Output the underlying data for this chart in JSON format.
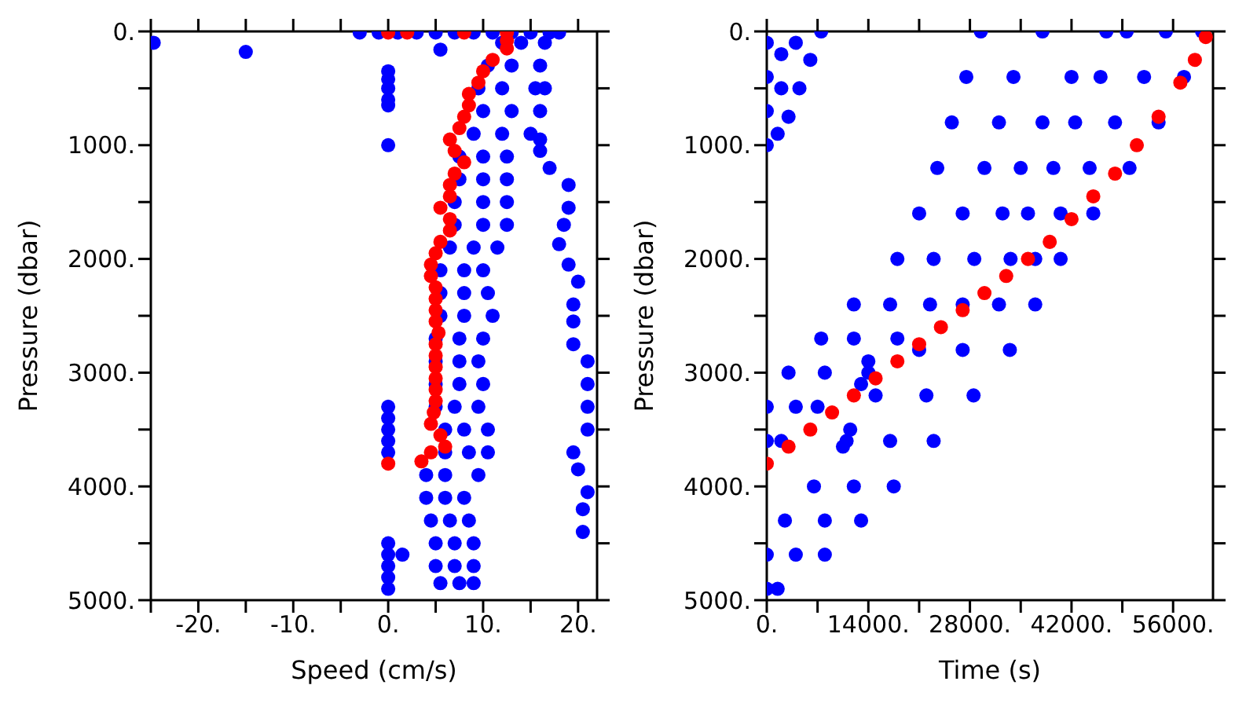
{
  "chart_data": [
    {
      "type": "scatter",
      "xlabel": "Speed (cm/s)",
      "ylabel": "Pressure (dbar)",
      "marker": "circle",
      "xlim": [
        -25,
        22
      ],
      "xticks": [
        {
          "value": -25,
          "label": null
        },
        {
          "value": -20,
          "label": "-20."
        },
        {
          "value": -15,
          "label": null
        },
        {
          "value": -10,
          "label": "-10."
        },
        {
          "value": -5,
          "label": null
        },
        {
          "value": 0,
          "label": "0."
        },
        {
          "value": 5,
          "label": null
        },
        {
          "value": 10,
          "label": "10."
        },
        {
          "value": 15,
          "label": null
        },
        {
          "value": 20,
          "label": "20."
        }
      ],
      "ylim": [
        5000,
        0
      ],
      "yticks": [
        {
          "value": 0,
          "label": "0."
        },
        {
          "value": 500,
          "label": null
        },
        {
          "value": 1000,
          "label": "1000."
        },
        {
          "value": 1500,
          "label": null
        },
        {
          "value": 2000,
          "label": "2000."
        },
        {
          "value": 2500,
          "label": null
        },
        {
          "value": 3000,
          "label": "3000."
        },
        {
          "value": 3500,
          "label": null
        },
        {
          "value": 4000,
          "label": "4000."
        },
        {
          "value": 4500,
          "label": null
        },
        {
          "value": 5000,
          "label": "5000."
        }
      ],
      "series": [
        {
          "color": "#0000ff",
          "x": [
            -3,
            -1,
            1,
            3,
            5,
            7,
            9,
            11,
            13,
            15,
            17,
            18,
            -24.7,
            -15,
            5.5,
            0,
            0,
            0,
            0,
            0,
            0,
            0,
            0,
            0,
            0,
            0,
            0,
            0,
            0,
            0,
            0,
            1.5,
            16,
            16,
            17,
            19,
            19,
            18.5,
            18,
            19,
            20,
            19.5,
            19.5,
            19.5,
            21,
            21,
            21,
            21,
            19.5,
            20,
            21,
            20.5,
            20.5,
            12,
            14,
            16.5,
            10.5,
            13,
            16,
            9.5,
            12,
            15.5,
            16.5,
            10,
            13,
            16,
            9,
            12,
            15,
            7.5,
            10,
            12.5,
            7.5,
            10,
            12.5,
            7,
            10,
            12.5,
            7,
            10,
            12.5,
            6.5,
            9,
            11.5,
            5.5,
            8,
            10,
            5.5,
            8,
            10.5,
            5.5,
            8,
            11,
            5,
            7.5,
            10,
            5,
            7.5,
            9.5,
            5,
            7.5,
            10,
            5,
            7,
            9.5,
            6,
            8,
            10.5,
            6,
            8.5,
            10.5,
            4,
            6,
            9.5,
            4,
            6,
            8,
            4.5,
            6.5,
            8.5,
            5,
            7,
            9,
            5,
            7,
            9,
            5.5,
            7.5,
            9
          ],
          "values": [
            10,
            10,
            10,
            10,
            10,
            10,
            10,
            10,
            10,
            10,
            10,
            10,
            100,
            180,
            160,
            350,
            420,
            500,
            600,
            650,
            1000,
            3300,
            3400,
            3500,
            3600,
            3700,
            4500,
            4600,
            4700,
            4800,
            4900,
            4600,
            950,
            1050,
            1200,
            1350,
            1550,
            1700,
            1870,
            2050,
            2200,
            2400,
            2550,
            2750,
            2900,
            3100,
            3300,
            3500,
            3700,
            3850,
            4050,
            4200,
            4400,
            100,
            100,
            100,
            300,
            300,
            300,
            500,
            500,
            500,
            500,
            700,
            700,
            700,
            900,
            900,
            900,
            1100,
            1100,
            1100,
            1300,
            1300,
            1300,
            1500,
            1500,
            1500,
            1700,
            1700,
            1700,
            1900,
            1900,
            1900,
            2100,
            2100,
            2100,
            2300,
            2300,
            2300,
            2500,
            2500,
            2500,
            2700,
            2700,
            2700,
            2900,
            2900,
            2900,
            3100,
            3100,
            3100,
            3300,
            3300,
            3300,
            3500,
            3500,
            3500,
            3700,
            3700,
            3700,
            3900,
            3900,
            3900,
            4100,
            4100,
            4100,
            4300,
            4300,
            4300,
            4500,
            4500,
            4500,
            4700,
            4700,
            4700,
            4850,
            4850,
            4850
          ]
        },
        {
          "color": "#ff0000",
          "x": [
            0,
            2,
            8,
            12.5,
            12.5,
            12.5,
            11,
            10,
            9.5,
            8.5,
            8.5,
            8,
            7.5,
            6.5,
            7,
            8,
            7,
            6.5,
            6.5,
            5.5,
            6.5,
            6.5,
            5.5,
            5,
            4.5,
            4.5,
            5,
            5,
            5,
            5,
            5.3,
            5,
            5,
            5,
            5,
            5,
            5,
            4.8,
            4.5,
            5.5,
            6,
            4.5,
            3.5,
            0
          ],
          "values": [
            10,
            10,
            10,
            10,
            80,
            150,
            250,
            350,
            450,
            550,
            650,
            750,
            850,
            950,
            1050,
            1150,
            1250,
            1350,
            1450,
            1550,
            1650,
            1750,
            1850,
            1950,
            2050,
            2150,
            2250,
            2350,
            2450,
            2550,
            2650,
            2750,
            2850,
            2950,
            3050,
            3150,
            3250,
            3350,
            3450,
            3550,
            3650,
            3700,
            3780,
            3800
          ]
        }
      ]
    },
    {
      "type": "scatter",
      "xlabel": "Time (s)",
      "ylabel": "Pressure (dbar)",
      "marker": "circle",
      "xlim": [
        0,
        61500
      ],
      "xticks": [
        {
          "value": 0,
          "label": "0."
        },
        {
          "value": 7000,
          "label": null
        },
        {
          "value": 14000,
          "label": "14000."
        },
        {
          "value": 21000,
          "label": null
        },
        {
          "value": 28000,
          "label": "28000."
        },
        {
          "value": 35000,
          "label": null
        },
        {
          "value": 42000,
          "label": "42000."
        },
        {
          "value": 49000,
          "label": null
        },
        {
          "value": 56000,
          "label": "56000."
        }
      ],
      "ylim": [
        5000,
        0
      ],
      "yticks": [
        {
          "value": 0,
          "label": "0."
        },
        {
          "value": 500,
          "label": null
        },
        {
          "value": 1000,
          "label": "1000."
        },
        {
          "value": 1500,
          "label": null
        },
        {
          "value": 2000,
          "label": "2000."
        },
        {
          "value": 2500,
          "label": null
        },
        {
          "value": 3000,
          "label": "3000."
        },
        {
          "value": 3500,
          "label": null
        },
        {
          "value": 4000,
          "label": "4000."
        },
        {
          "value": 4500,
          "label": null
        },
        {
          "value": 5000,
          "label": "5000."
        }
      ],
      "series": [
        {
          "color": "#0000ff",
          "x": [
            0,
            0,
            0,
            2000,
            2000,
            4000,
            7500,
            6000,
            4500,
            3000,
            1500,
            0,
            0,
            2000,
            0,
            4000,
            7000,
            3000,
            8000,
            14000,
            7500,
            12000,
            18000,
            12000,
            17000,
            22500,
            18000,
            23000,
            28600,
            21000,
            27000,
            32500,
            23500,
            30000,
            35000,
            25500,
            32000,
            38000,
            27500,
            34000,
            42000,
            29500,
            38000,
            46800,
            14000,
            13000,
            11500,
            10500,
            0,
            1500,
            0,
            4000,
            8000,
            2500,
            8000,
            13000,
            6500,
            12000,
            17500,
            11000,
            17000,
            23000,
            15000,
            22000,
            28500,
            21000,
            27000,
            33500,
            27000,
            32000,
            37000,
            33600,
            37000,
            40500,
            36000,
            40500,
            45000,
            39500,
            44500,
            50000,
            42500,
            48000,
            54000,
            46000,
            52000,
            57500,
            49600,
            55000,
            60000
          ],
          "values": [
            100,
            400,
            700,
            200,
            500,
            100,
            0,
            250,
            500,
            750,
            900,
            1000,
            3600,
            3600,
            3300,
            3300,
            3300,
            3000,
            3000,
            3000,
            2700,
            2700,
            2700,
            2400,
            2400,
            2400,
            2000,
            2000,
            2000,
            1600,
            1600,
            1600,
            1200,
            1200,
            1200,
            800,
            800,
            800,
            400,
            400,
            400,
            0,
            0,
            0,
            2900,
            3100,
            3500,
            3650,
            4900,
            4900,
            4600,
            4600,
            4600,
            4300,
            4300,
            4300,
            4000,
            4000,
            4000,
            3600,
            3600,
            3600,
            3200,
            3200,
            3200,
            2800,
            2800,
            2800,
            2400,
            2400,
            2400,
            2000,
            2000,
            2000,
            1600,
            1600,
            1600,
            1200,
            1200,
            1200,
            800,
            800,
            800,
            400,
            400,
            400,
            0,
            0,
            0
          ]
        },
        {
          "color": "#ff0000",
          "x": [
            0,
            3000,
            6000,
            9000,
            12000,
            15000,
            18000,
            21000,
            24000,
            27000,
            30000,
            33000,
            36000,
            39000,
            42000,
            45000,
            48000,
            51000,
            54000,
            57000,
            59000,
            60500
          ],
          "values": [
            3800,
            3650,
            3500,
            3350,
            3200,
            3050,
            2900,
            2750,
            2600,
            2450,
            2300,
            2150,
            2000,
            1850,
            1650,
            1450,
            1250,
            1000,
            750,
            450,
            250,
            50
          ]
        }
      ]
    }
  ]
}
